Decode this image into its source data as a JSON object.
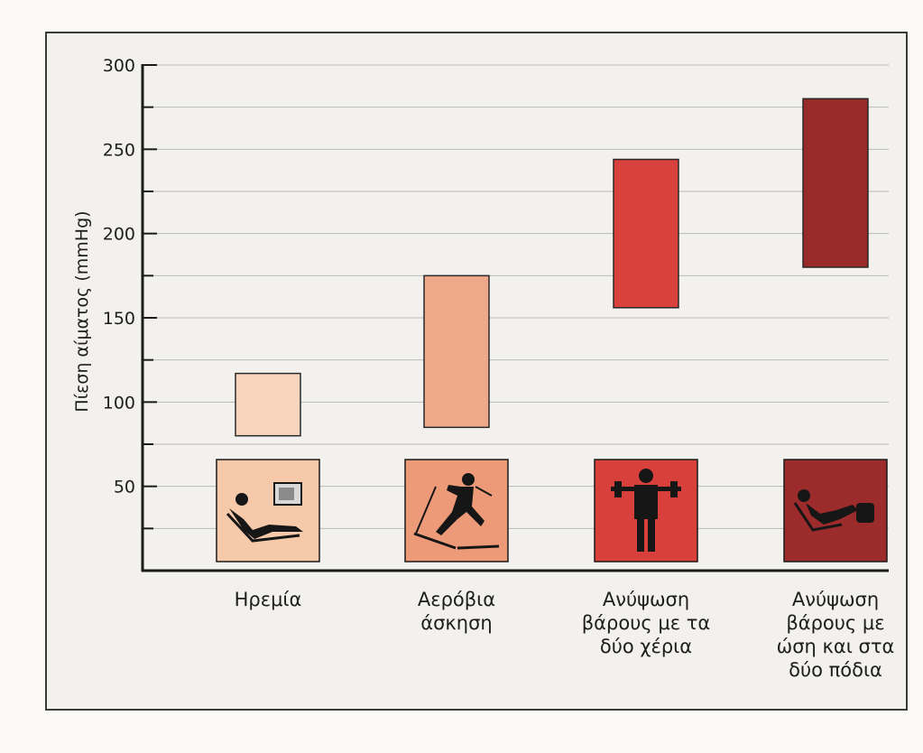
{
  "chart_data": {
    "type": "floating-bar",
    "ylabel": "Πίεση αίματος (mmHg)",
    "ylim": [
      0,
      300
    ],
    "yticks": [
      50,
      100,
      150,
      200,
      250,
      300
    ],
    "grid": true,
    "categories": [
      [
        "Ηρεμία"
      ],
      [
        "Αερόβια",
        "άσκηση"
      ],
      [
        "Ανύψωση",
        "βάρους με τα",
        "δύο χέρια"
      ],
      [
        "Ανύψωση",
        "βάρους με",
        "ώση και στα",
        "δύο πόδια"
      ]
    ],
    "ranges": [
      {
        "low": 80,
        "high": 117
      },
      {
        "low": 85,
        "high": 175
      },
      {
        "low": 156,
        "high": 244
      },
      {
        "low": 180,
        "high": 280
      }
    ],
    "colors": [
      "#f7d6bd",
      "#f0a88a",
      "#d9423c",
      "#982a2a"
    ],
    "icon_bg": [
      "#f5c9aa",
      "#ec9a78",
      "#d8403b",
      "#9c2b2b"
    ],
    "icons": [
      "reclining-person-tv-icon",
      "cross-country-skier-icon",
      "weightlifter-icon",
      "leg-press-icon"
    ]
  }
}
